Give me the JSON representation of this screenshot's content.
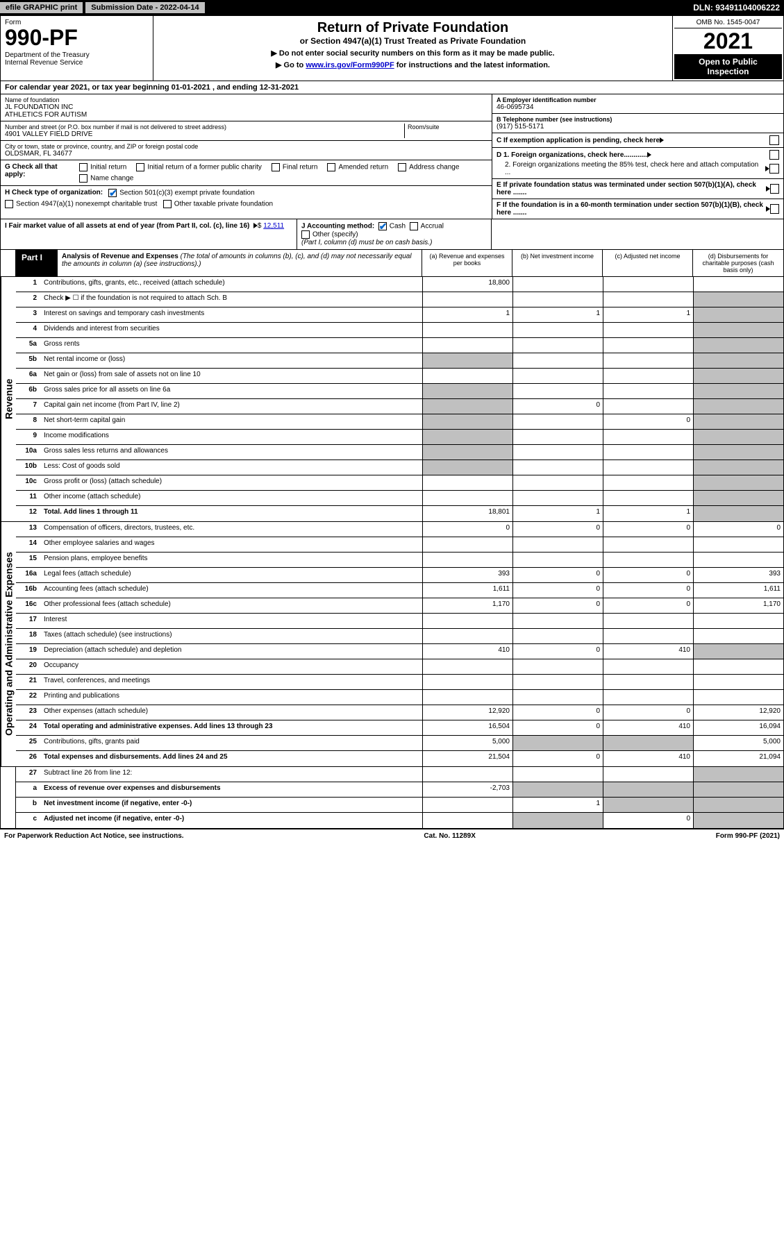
{
  "topbar": {
    "efile": "efile GRAPHIC print",
    "subdate_label": "Submission Date - 2022-04-14",
    "dln": "DLN: 93491104006222"
  },
  "header": {
    "form_label": "Form",
    "form_num": "990-PF",
    "dept": "Department of the Treasury\nInternal Revenue Service",
    "title": "Return of Private Foundation",
    "subtitle": "or Section 4947(a)(1) Trust Treated as Private Foundation",
    "note1": "▶ Do not enter social security numbers on this form as it may be made public.",
    "note2_pre": "▶ Go to ",
    "note2_link": "www.irs.gov/Form990PF",
    "note2_post": " for instructions and the latest information.",
    "omb": "OMB No. 1545-0047",
    "year": "2021",
    "otp": "Open to Public Inspection"
  },
  "calyear": "For calendar year 2021, or tax year beginning 01-01-2021              , and ending 12-31-2021",
  "entity": {
    "name_lbl": "Name of foundation",
    "name": "JL FOUNDATION INC\nATHLETICS FOR AUTISM",
    "addr_lbl": "Number and street (or P.O. box number if mail is not delivered to street address)",
    "addr": "4901 VALLEY FIELD DRIVE",
    "room_lbl": "Room/suite",
    "city_lbl": "City or town, state or province, country, and ZIP or foreign postal code",
    "city": "OLDSMAR, FL  34677",
    "a_lbl": "A Employer identification number",
    "a_val": "46-0695734",
    "b_lbl": "B Telephone number (see instructions)",
    "b_val": "(917) 515-5171",
    "c_lbl": "C If exemption application is pending, check here",
    "d1_lbl": "D 1. Foreign organizations, check here............",
    "d2_lbl": "2. Foreign organizations meeting the 85% test, check here and attach computation ...",
    "e_lbl": "E  If private foundation status was terminated under section 507(b)(1)(A), check here .......",
    "f_lbl": "F  If the foundation is in a 60-month termination under section 507(b)(1)(B), check here ......."
  },
  "g": {
    "label": "G Check all that apply:",
    "opts": [
      "Initial return",
      "Initial return of a former public charity",
      "Final return",
      "Amended return",
      "Address change",
      "Name change"
    ]
  },
  "h": {
    "label": "H Check type of organization:",
    "opt1": "Section 501(c)(3) exempt private foundation",
    "opt2": "Section 4947(a)(1) nonexempt charitable trust",
    "opt3": "Other taxable private foundation"
  },
  "i": {
    "label": "I Fair market value of all assets at end of year (from Part II, col. (c), line 16)",
    "val": "12,511"
  },
  "j": {
    "label": "J Accounting method:",
    "cash": "Cash",
    "accrual": "Accrual",
    "other": "Other (specify)",
    "note": "(Part I, column (d) must be on cash basis.)"
  },
  "part1": {
    "label": "Part I",
    "title": "Analysis of Revenue and Expenses",
    "title_note": " (The total of amounts in columns (b), (c), and (d) may not necessarily equal the amounts in column (a) (see instructions).)",
    "cols": {
      "a": "(a)   Revenue and expenses per books",
      "b": "(b)   Net investment income",
      "c": "(c)   Adjusted net income",
      "d": "(d)   Disbursements for charitable purposes (cash basis only)"
    }
  },
  "sides": {
    "rev": "Revenue",
    "exp": "Operating and Administrative Expenses"
  },
  "lines": {
    "1": "Contributions, gifts, grants, etc., received (attach schedule)",
    "2": "Check ▶ ☐ if the foundation is not required to attach Sch. B",
    "3": "Interest on savings and temporary cash investments",
    "4": "Dividends and interest from securities",
    "5a": "Gross rents",
    "5b": "Net rental income or (loss)",
    "6a": "Net gain or (loss) from sale of assets not on line 10",
    "6b": "Gross sales price for all assets on line 6a",
    "7": "Capital gain net income (from Part IV, line 2)",
    "8": "Net short-term capital gain",
    "9": "Income modifications",
    "10a": "Gross sales less returns and allowances",
    "10b": "Less: Cost of goods sold",
    "10c": "Gross profit or (loss) (attach schedule)",
    "11": "Other income (attach schedule)",
    "12": "Total. Add lines 1 through 11",
    "13": "Compensation of officers, directors, trustees, etc.",
    "14": "Other employee salaries and wages",
    "15": "Pension plans, employee benefits",
    "16a": "Legal fees (attach schedule)",
    "16b": "Accounting fees (attach schedule)",
    "16c": "Other professional fees (attach schedule)",
    "17": "Interest",
    "18": "Taxes (attach schedule) (see instructions)",
    "19": "Depreciation (attach schedule) and depletion",
    "20": "Occupancy",
    "21": "Travel, conferences, and meetings",
    "22": "Printing and publications",
    "23": "Other expenses (attach schedule)",
    "24": "Total operating and administrative expenses. Add lines 13 through 23",
    "25": "Contributions, gifts, grants paid",
    "26": "Total expenses and disbursements. Add lines 24 and 25",
    "27": "Subtract line 26 from line 12:",
    "27a": "Excess of revenue over expenses and disbursements",
    "27b": "Net investment income (if negative, enter -0-)",
    "27c": "Adjusted net income (if negative, enter -0-)"
  },
  "vals": {
    "1": {
      "a": "18,800",
      "b": "",
      "c": "",
      "d": ""
    },
    "3": {
      "a": "1",
      "b": "1",
      "c": "1",
      "d": ""
    },
    "7": {
      "a": "",
      "b": "0",
      "c": "",
      "d": ""
    },
    "8": {
      "a": "",
      "b": "",
      "c": "0",
      "d": ""
    },
    "12": {
      "a": "18,801",
      "b": "1",
      "c": "1",
      "d": ""
    },
    "13": {
      "a": "0",
      "b": "0",
      "c": "0",
      "d": "0"
    },
    "16a": {
      "a": "393",
      "b": "0",
      "c": "0",
      "d": "393"
    },
    "16b": {
      "a": "1,611",
      "b": "0",
      "c": "0",
      "d": "1,611"
    },
    "16c": {
      "a": "1,170",
      "b": "0",
      "c": "0",
      "d": "1,170"
    },
    "19": {
      "a": "410",
      "b": "0",
      "c": "410",
      "d": ""
    },
    "23": {
      "a": "12,920",
      "b": "0",
      "c": "0",
      "d": "12,920"
    },
    "24": {
      "a": "16,504",
      "b": "0",
      "c": "410",
      "d": "16,094"
    },
    "25": {
      "a": "5,000",
      "b": "",
      "c": "",
      "d": "5,000"
    },
    "26": {
      "a": "21,504",
      "b": "0",
      "c": "410",
      "d": "21,094"
    },
    "27a": {
      "a": "-2,703",
      "b": "",
      "c": "",
      "d": ""
    },
    "27b": {
      "a": "",
      "b": "1",
      "c": "",
      "d": ""
    },
    "27c": {
      "a": "",
      "b": "",
      "c": "0",
      "d": ""
    }
  },
  "footer": {
    "l": "For Paperwork Reduction Act Notice, see instructions.",
    "m": "Cat. No. 11289X",
    "r": "Form 990-PF (2021)"
  },
  "colors": {
    "black": "#000000",
    "grey": "#c0c0c0",
    "link": "#0000cc",
    "check": "#0066cc"
  }
}
